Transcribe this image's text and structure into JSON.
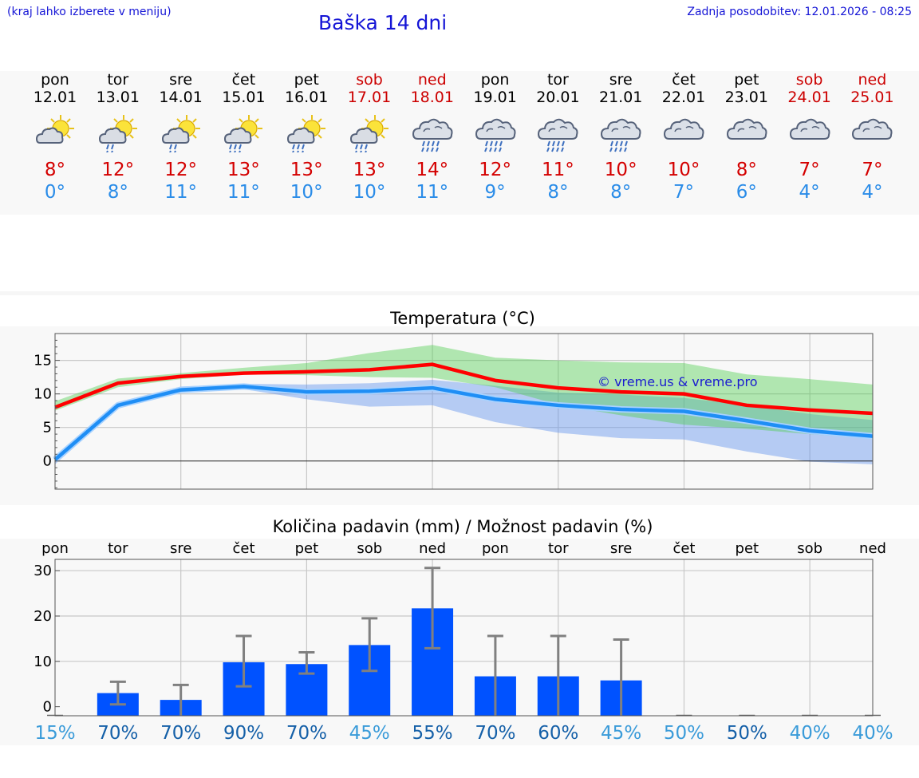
{
  "header": {
    "menu_hint": "(kraj lahko izberete v meniju)",
    "title": "Baška 14 dni",
    "last_update": "Zadnja posodobitev: 12.01.2026 - 08:25"
  },
  "colors": {
    "link": "#1515d6",
    "max_temp": "#d40000",
    "min_temp": "#2a8ce8",
    "weekend": "#cc0000",
    "bar": "#0052ff"
  },
  "forecast": [
    {
      "day": "pon",
      "date": "12.01",
      "icon": "sun-cloud-icon",
      "max": "8°",
      "min": "0°",
      "weekend": false
    },
    {
      "day": "tor",
      "date": "13.01",
      "icon": "sun-cloud-rain-icon",
      "max": "12°",
      "min": "8°",
      "weekend": false
    },
    {
      "day": "sre",
      "date": "14.01",
      "icon": "sun-cloud-rain-icon",
      "max": "12°",
      "min": "11°",
      "weekend": false
    },
    {
      "day": "čet",
      "date": "15.01",
      "icon": "sun-cloud-heavy-rain-icon",
      "max": "13°",
      "min": "11°",
      "weekend": false
    },
    {
      "day": "pet",
      "date": "16.01",
      "icon": "sun-cloud-heavy-rain-icon",
      "max": "13°",
      "min": "10°",
      "weekend": false
    },
    {
      "day": "sob",
      "date": "17.01",
      "icon": "sun-cloud-heavy-rain-icon",
      "max": "13°",
      "min": "10°",
      "weekend": true
    },
    {
      "day": "ned",
      "date": "18.01",
      "icon": "cloud-rain-icon",
      "max": "14°",
      "min": "11°",
      "weekend": true
    },
    {
      "day": "pon",
      "date": "19.01",
      "icon": "cloud-rain-icon",
      "max": "12°",
      "min": "9°",
      "weekend": false
    },
    {
      "day": "tor",
      "date": "20.01",
      "icon": "cloud-rain-icon",
      "max": "11°",
      "min": "8°",
      "weekend": false
    },
    {
      "day": "sre",
      "date": "21.01",
      "icon": "cloud-rain-icon",
      "max": "10°",
      "min": "8°",
      "weekend": false
    },
    {
      "day": "čet",
      "date": "22.01",
      "icon": "cloud-icon",
      "max": "10°",
      "min": "7°",
      "weekend": false
    },
    {
      "day": "pet",
      "date": "23.01",
      "icon": "cloud-icon",
      "max": "8°",
      "min": "6°",
      "weekend": false
    },
    {
      "day": "sob",
      "date": "24.01",
      "icon": "cloud-icon",
      "max": "7°",
      "min": "4°",
      "weekend": true
    },
    {
      "day": "ned",
      "date": "25.01",
      "icon": "cloud-icon",
      "max": "7°",
      "min": "4°",
      "weekend": true
    }
  ],
  "chart_data": [
    {
      "type": "line",
      "title": "Temperatura (°C)",
      "watermark": "© vreme.us & vreme.pro",
      "x": [
        "12.01",
        "13.01",
        "14.01",
        "15.01",
        "16.01",
        "17.01",
        "18.01",
        "19.01",
        "20.01",
        "21.01",
        "22.01",
        "23.01",
        "24.01",
        "25.01"
      ],
      "ylim": [
        -4.2,
        19
      ],
      "yticks": [
        0,
        5,
        10,
        15
      ],
      "series": [
        {
          "name": "max",
          "values": [
            8.0,
            11.6,
            12.6,
            13.1,
            13.3,
            13.6,
            14.4,
            12.0,
            10.9,
            10.3,
            10.0,
            8.3,
            7.6,
            7.1
          ]
        },
        {
          "name": "min",
          "values": [
            0.2,
            8.3,
            10.6,
            11.1,
            10.3,
            10.4,
            10.9,
            9.2,
            8.3,
            7.7,
            7.4,
            6.0,
            4.5,
            3.7
          ]
        }
      ],
      "bands": [
        {
          "name": "max-range",
          "lower": [
            7.5,
            11.0,
            12.2,
            12.9,
            12.8,
            12.5,
            12.4,
            11.0,
            8.4,
            6.8,
            5.4,
            4.8,
            4.0,
            3.3
          ],
          "upper": [
            8.9,
            12.3,
            13.1,
            13.9,
            14.6,
            16.1,
            17.3,
            15.4,
            15.0,
            14.7,
            14.6,
            12.9,
            12.2,
            11.4
          ]
        },
        {
          "name": "min-range",
          "lower": [
            -0.5,
            7.8,
            10.3,
            10.7,
            9.2,
            8.1,
            8.3,
            5.8,
            4.2,
            3.4,
            3.2,
            1.4,
            -0.1,
            -0.5
          ],
          "upper": [
            0.8,
            8.8,
            11.1,
            11.5,
            11.4,
            11.6,
            12.1,
            11.2,
            10.2,
            9.9,
            9.4,
            8.3,
            7.0,
            6.1
          ]
        }
      ]
    },
    {
      "type": "bar",
      "title": "Količina padavin (mm) / Možnost padavin (%)",
      "categories": [
        "pon",
        "tor",
        "sre",
        "čet",
        "pet",
        "sob",
        "ned",
        "pon",
        "tor",
        "sre",
        "čet",
        "pet",
        "sob",
        "ned"
      ],
      "ylim": [
        -2,
        32.5
      ],
      "yticks": [
        0,
        10,
        20,
        30
      ],
      "values": [
        0,
        3,
        1.5,
        9.8,
        9.4,
        13.6,
        21.7,
        6.7,
        6.7,
        5.8,
        0,
        0,
        0,
        0
      ],
      "error_low": [
        0,
        0.5,
        0,
        4.5,
        7.3,
        7.9,
        12.9,
        0,
        0,
        0,
        0,
        0,
        0,
        0
      ],
      "error_high": [
        0,
        5.5,
        4.8,
        15.6,
        12,
        19.5,
        30.6,
        15.6,
        15.6,
        14.8,
        0,
        0,
        0,
        0
      ],
      "probability": [
        "15%",
        "70%",
        "70%",
        "90%",
        "70%",
        "45%",
        "55%",
        "70%",
        "60%",
        "45%",
        "50%",
        "50%",
        "40%",
        "40%"
      ],
      "probability_dark": [
        false,
        true,
        true,
        true,
        true,
        false,
        true,
        true,
        true,
        false,
        false,
        true,
        false,
        false
      ]
    }
  ]
}
